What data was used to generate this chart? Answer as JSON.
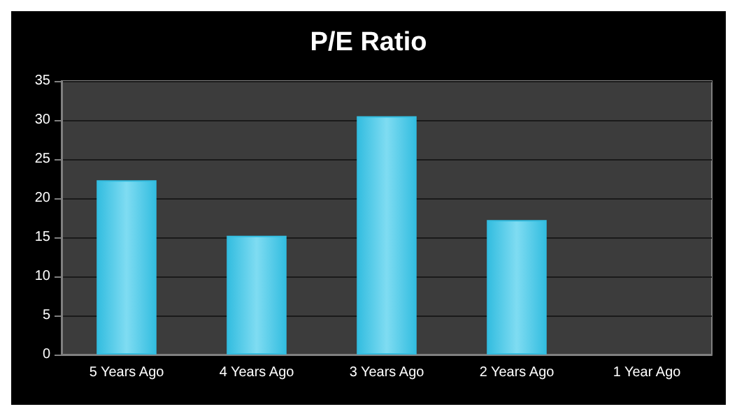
{
  "chart_data": {
    "type": "bar",
    "title": "P/E Ratio",
    "categories": [
      "5 Years Ago",
      "4 Years Ago",
      "3 Years Ago",
      "2 Years Ago",
      "1 Year Ago"
    ],
    "values": [
      22.3,
      15.2,
      30.5,
      17.2,
      null
    ],
    "color": "#33bde0",
    "ylim": [
      0,
      35
    ],
    "yticks": [
      0,
      5,
      10,
      15,
      20,
      25,
      30,
      35
    ],
    "grid": "y"
  }
}
